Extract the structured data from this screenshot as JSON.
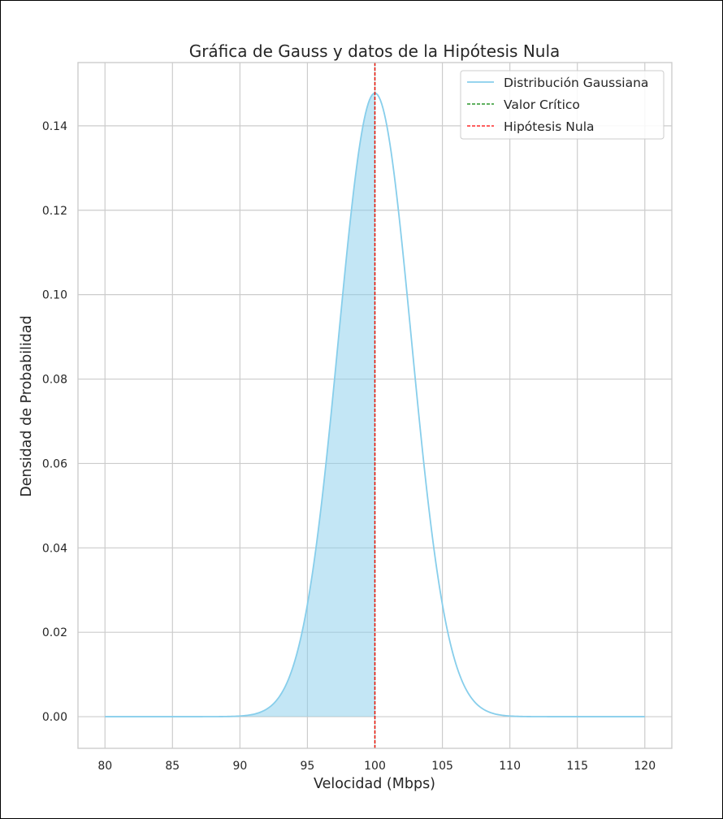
{
  "chart_data": {
    "type": "line",
    "title": "Gráfica de Gauss y datos de la Hipótesis Nula",
    "xlabel": "Velocidad (Mbps)",
    "ylabel": "Densidad de Probabilidad",
    "xlim": [
      78,
      122
    ],
    "ylim": [
      -0.0075,
      0.155
    ],
    "x_ticks": [
      80,
      85,
      90,
      95,
      100,
      105,
      110,
      115,
      120
    ],
    "y_ticks": [
      0.0,
      0.02,
      0.04,
      0.06,
      0.08,
      0.1,
      0.12,
      0.14
    ],
    "y_tick_labels": [
      "0.00",
      "0.02",
      "0.04",
      "0.06",
      "0.08",
      "0.10",
      "0.12",
      "0.14"
    ],
    "grid": true,
    "legend_position": "top-right",
    "series": [
      {
        "name": "Distribución Gaussiana",
        "kind": "gaussian_curve",
        "mean": 100,
        "std": 2.7,
        "x_range": [
          80,
          120
        ],
        "color": "#87CEEB"
      },
      {
        "name": "Valor Crítico",
        "kind": "vertical_line",
        "x": 100,
        "color": "#008000"
      },
      {
        "name": "Hipótesis Nula",
        "kind": "vertical_line",
        "x": 100,
        "color": "#ff0000"
      }
    ],
    "shaded_region": {
      "x_from": 80,
      "x_to": 100,
      "color": "#87CEEB"
    }
  }
}
